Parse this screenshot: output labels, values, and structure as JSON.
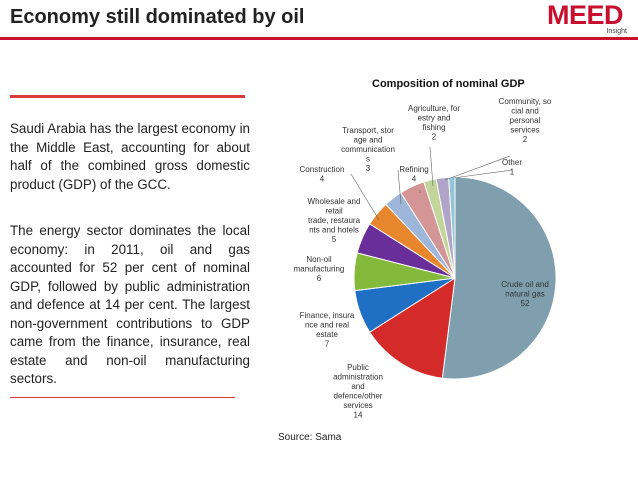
{
  "header": {
    "title": "Economy still dominated by oil",
    "logo_text": "MEED",
    "logo_sub": "Insight"
  },
  "body": {
    "para1": "Saudi Arabia has the largest economy in the Middle East, accounting for about half of the combined gross domestic product (GDP) of the GCC.",
    "para2": "The energy sector dominates the local economy: in 2011, oil and gas accounted for 52 per cent of nominal GDP, followed by public administration and defence at 14 per cent. The largest non-government contributions to GDP came from the finance, insurance, real estate and non-oil manufacturing sectors."
  },
  "source": "Source: Sama",
  "colors": {
    "accent": "#c8102e",
    "rule": "#d93a3a"
  },
  "chart_data": {
    "type": "pie",
    "title": "Composition of nominal GDP",
    "slices": [
      {
        "name": "Crude oil and natural gas",
        "value": 52,
        "color": "#7f9fae",
        "label_lines": [
          "Crude oil and",
          "natural gas"
        ]
      },
      {
        "name": "Public administration and defence/other services",
        "value": 14,
        "color": "#d42a2a",
        "label_lines": [
          "Public",
          "administration",
          "and",
          "defence/other",
          "services"
        ]
      },
      {
        "name": "Finance, insurance and real estate",
        "value": 7,
        "color": "#1f6fc4",
        "label_lines": [
          "Finance, insura",
          "nce and real",
          "estate"
        ]
      },
      {
        "name": "Non-oil manufacturing",
        "value": 6,
        "color": "#84ba3b",
        "label_lines": [
          "Non-oil",
          "manufacturing"
        ]
      },
      {
        "name": "Wholesale and retail trade, restaurants and hotels",
        "value": 5,
        "color": "#6a2e9a",
        "label_lines": [
          "Wholesale and",
          "retail",
          "trade, restaura",
          "nts and hotels"
        ]
      },
      {
        "name": "Construction",
        "value": 4,
        "color": "#e8862d",
        "label_lines": [
          "Construction"
        ]
      },
      {
        "name": "Transport, storage and communications",
        "value": 3,
        "color": "#9fb6db",
        "label_lines": [
          "Transport, stor",
          "age and",
          "communication",
          "s"
        ]
      },
      {
        "name": "Refining",
        "value": 4,
        "color": "#d39595",
        "label_lines": [
          "Refining"
        ]
      },
      {
        "name": "Agriculture, forestry and fishing",
        "value": 2,
        "color": "#c3d59b",
        "label_lines": [
          "Agriculture, for",
          "estry and",
          "fishing"
        ]
      },
      {
        "name": "Community, social and personal services",
        "value": 2,
        "color": "#b0a4c8",
        "label_lines": [
          "Community, so",
          "cial and",
          "personal",
          "services"
        ]
      },
      {
        "name": "Other",
        "value": 1,
        "color": "#8fc5d6",
        "label_lines": [
          "Other"
        ]
      }
    ]
  }
}
